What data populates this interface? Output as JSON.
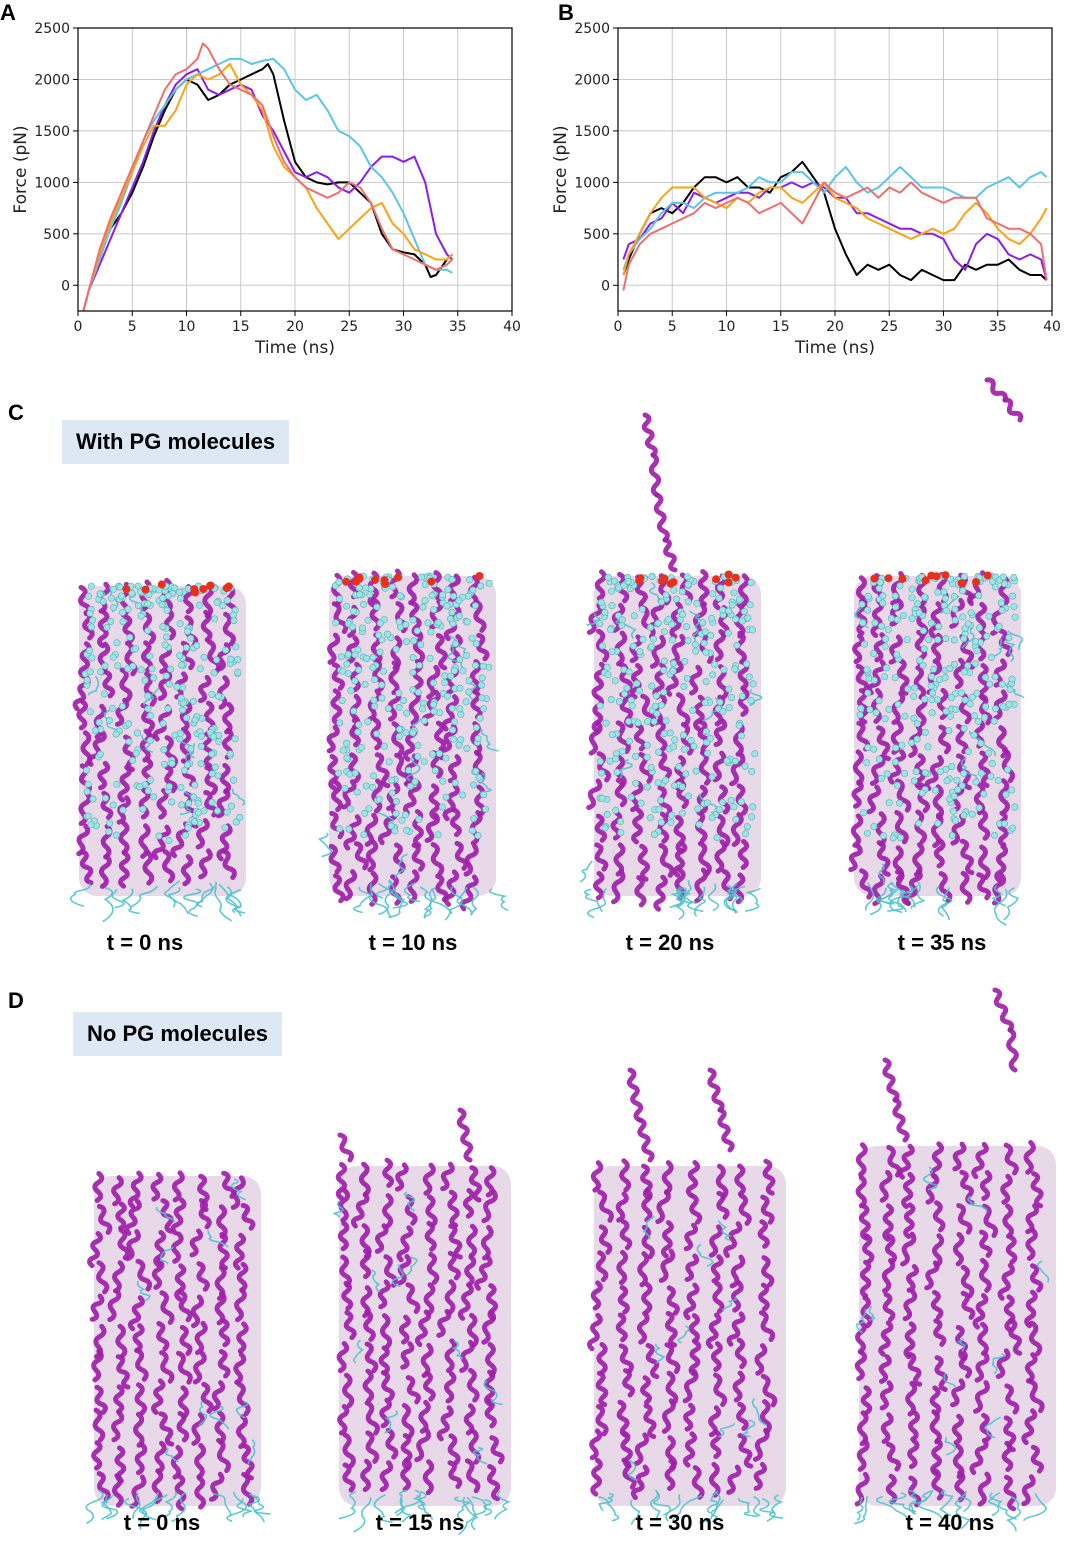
{
  "panels": {
    "a": "A",
    "b": "B",
    "c": "C",
    "d": "D"
  },
  "colors": {
    "black": "#000000",
    "purple": "#8a1ee8",
    "cyan": "#5bc4e8",
    "orange": "#f7a416",
    "salmon": "#ec7070",
    "helix": "#a020a8",
    "coil": "#4fc2cc",
    "pg_bead": "#9de4e6",
    "oxygen": "#e8301c",
    "label_bg": "#dce9f5"
  },
  "chart_data": [
    {
      "type": "line",
      "xlabel": "Time (ns)",
      "ylabel": "Force (pN)",
      "xlim": [
        0,
        40
      ],
      "ylim": [
        -250,
        2500
      ],
      "xticks": [
        0,
        5,
        10,
        15,
        20,
        25,
        30,
        35,
        40
      ],
      "yticks": [
        0,
        500,
        1000,
        1500,
        2000,
        2500
      ],
      "grid": true,
      "series": [
        {
          "color": "black",
          "x": [
            0.5,
            1,
            2,
            3,
            4,
            5,
            6,
            7,
            8,
            9,
            10,
            11,
            12,
            13,
            14,
            15,
            16,
            17,
            17.5,
            18,
            19,
            20,
            21,
            22,
            23,
            24,
            25,
            26,
            27,
            28,
            29,
            30,
            31,
            32,
            32.5,
            33,
            34,
            34.5
          ],
          "y": [
            -250,
            -50,
            300,
            550,
            700,
            900,
            1150,
            1450,
            1700,
            1900,
            2000,
            1950,
            1800,
            1850,
            1950,
            2000,
            2050,
            2100,
            2150,
            2050,
            1600,
            1200,
            1050,
            1000,
            980,
            1000,
            1000,
            900,
            800,
            500,
            350,
            320,
            300,
            200,
            80,
            100,
            250,
            300
          ]
        },
        {
          "color": "purple",
          "x": [
            0.5,
            1,
            2,
            3,
            4,
            5,
            6,
            7,
            8,
            9,
            10,
            11,
            12,
            13,
            14,
            15,
            16,
            17,
            18,
            19,
            20,
            21,
            22,
            23,
            24,
            25,
            26,
            27,
            28,
            29,
            30,
            31,
            32,
            33,
            34,
            34.5
          ],
          "y": [
            -250,
            -50,
            200,
            450,
            700,
            950,
            1200,
            1500,
            1750,
            1950,
            2050,
            2100,
            1900,
            1850,
            1900,
            1950,
            1900,
            1650,
            1500,
            1300,
            1100,
            1050,
            1100,
            1050,
            950,
            900,
            1000,
            1150,
            1250,
            1250,
            1200,
            1250,
            1000,
            500,
            300,
            250
          ]
        },
        {
          "color": "cyan",
          "x": [
            0.5,
            1,
            2,
            3,
            4,
            5,
            6,
            7,
            8,
            9,
            10,
            11,
            12,
            13,
            14,
            15,
            16,
            17,
            18,
            19,
            20,
            21,
            22,
            23,
            24,
            25,
            26,
            27,
            28,
            29,
            30,
            31,
            32,
            33,
            34,
            34.5
          ],
          "y": [
            -250,
            -50,
            250,
            550,
            800,
            1100,
            1400,
            1600,
            1750,
            1900,
            2000,
            2050,
            2100,
            2150,
            2200,
            2200,
            2150,
            2180,
            2200,
            2100,
            1900,
            1800,
            1850,
            1700,
            1500,
            1450,
            1350,
            1150,
            1050,
            900,
            700,
            450,
            200,
            150,
            150,
            120
          ]
        },
        {
          "color": "orange",
          "x": [
            0.5,
            1,
            2,
            3,
            4,
            5,
            6,
            7,
            8,
            9,
            10,
            11,
            12,
            13,
            14,
            15,
            16,
            17,
            18,
            19,
            20,
            21,
            22,
            23,
            24,
            25,
            26,
            27,
            28,
            29,
            30,
            31,
            32,
            33,
            34,
            34.5
          ],
          "y": [
            -250,
            -50,
            300,
            600,
            850,
            1100,
            1350,
            1550,
            1550,
            1700,
            1950,
            2050,
            2000,
            2050,
            2150,
            1950,
            1850,
            1700,
            1350,
            1150,
            1050,
            950,
            750,
            600,
            450,
            550,
            650,
            750,
            800,
            600,
            500,
            350,
            300,
            250,
            250,
            300
          ]
        },
        {
          "color": "salmon",
          "x": [
            0.5,
            1,
            2,
            3,
            4,
            5,
            6,
            7,
            8,
            9,
            10,
            11,
            11.5,
            12,
            13,
            14,
            15,
            16,
            17,
            18,
            19,
            20,
            21,
            22,
            23,
            24,
            25,
            26,
            27,
            28,
            29,
            30,
            31,
            32,
            33,
            34,
            34.5
          ],
          "y": [
            -250,
            -50,
            350,
            650,
            900,
            1150,
            1400,
            1650,
            1900,
            2050,
            2100,
            2200,
            2350,
            2300,
            2100,
            1950,
            1900,
            1850,
            1750,
            1450,
            1200,
            1050,
            950,
            900,
            850,
            900,
            1000,
            950,
            800,
            550,
            350,
            300,
            250,
            200,
            150,
            200,
            250
          ]
        }
      ]
    },
    {
      "type": "line",
      "xlabel": "Time (ns)",
      "ylabel": "Force (pN)",
      "xlim": [
        0,
        40
      ],
      "ylim": [
        -250,
        2500
      ],
      "xticks": [
        0,
        5,
        10,
        15,
        20,
        25,
        30,
        35,
        40
      ],
      "yticks": [
        0,
        500,
        1000,
        1500,
        2000,
        2500
      ],
      "grid": true,
      "series": [
        {
          "color": "black",
          "x": [
            0.5,
            1,
            2,
            3,
            4,
            5,
            6,
            7,
            8,
            9,
            10,
            11,
            12,
            13,
            14,
            15,
            16,
            17,
            18,
            19,
            20,
            21,
            22,
            23,
            24,
            25,
            26,
            27,
            28,
            29,
            30,
            31,
            32,
            33,
            34,
            35,
            36,
            37,
            38,
            39,
            39.5
          ],
          "y": [
            100,
            250,
            500,
            700,
            750,
            700,
            800,
            950,
            1050,
            1050,
            1000,
            1050,
            950,
            950,
            900,
            1050,
            1100,
            1200,
            1050,
            900,
            550,
            300,
            100,
            200,
            150,
            200,
            100,
            50,
            150,
            100,
            50,
            50,
            200,
            150,
            200,
            200,
            250,
            150,
            100,
            100,
            50
          ]
        },
        {
          "color": "purple",
          "x": [
            0.5,
            1,
            2,
            3,
            4,
            5,
            6,
            7,
            8,
            9,
            10,
            11,
            12,
            13,
            14,
            15,
            16,
            17,
            18,
            19,
            20,
            21,
            22,
            23,
            24,
            25,
            26,
            27,
            28,
            29,
            30,
            31,
            32,
            33,
            34,
            35,
            36,
            37,
            38,
            39,
            39.5
          ],
          "y": [
            250,
            400,
            450,
            600,
            650,
            800,
            700,
            900,
            850,
            800,
            850,
            900,
            900,
            850,
            950,
            950,
            1000,
            950,
            1000,
            950,
            850,
            850,
            700,
            700,
            650,
            600,
            550,
            550,
            500,
            500,
            450,
            250,
            150,
            400,
            500,
            450,
            300,
            250,
            300,
            250,
            50
          ]
        },
        {
          "color": "cyan",
          "x": [
            0.5,
            1,
            2,
            3,
            4,
            5,
            6,
            7,
            8,
            9,
            10,
            11,
            12,
            13,
            14,
            15,
            16,
            17,
            18,
            19,
            20,
            21,
            22,
            23,
            24,
            25,
            26,
            27,
            28,
            29,
            30,
            31,
            32,
            33,
            34,
            35,
            36,
            37,
            38,
            39,
            39.5
          ],
          "y": [
            150,
            300,
            450,
            550,
            700,
            800,
            800,
            750,
            850,
            900,
            900,
            900,
            950,
            1050,
            1000,
            1000,
            1100,
            1100,
            1000,
            900,
            1050,
            1150,
            1000,
            900,
            950,
            1050,
            1150,
            1050,
            950,
            950,
            950,
            900,
            850,
            850,
            950,
            1000,
            1050,
            950,
            1050,
            1100,
            1050
          ]
        },
        {
          "color": "orange",
          "x": [
            0.5,
            1,
            2,
            3,
            4,
            5,
            6,
            7,
            8,
            9,
            10,
            11,
            12,
            13,
            14,
            15,
            16,
            17,
            18,
            19,
            20,
            21,
            22,
            23,
            24,
            25,
            26,
            27,
            28,
            29,
            30,
            31,
            32,
            33,
            34,
            35,
            36,
            37,
            38,
            39,
            39.5
          ],
          "y": [
            100,
            300,
            500,
            700,
            850,
            950,
            950,
            950,
            850,
            800,
            750,
            850,
            800,
            900,
            950,
            950,
            850,
            800,
            900,
            1000,
            850,
            800,
            750,
            650,
            600,
            550,
            500,
            450,
            500,
            550,
            500,
            550,
            700,
            800,
            700,
            550,
            450,
            400,
            500,
            650,
            750
          ]
        },
        {
          "color": "salmon",
          "x": [
            0.5,
            1,
            2,
            3,
            4,
            5,
            6,
            7,
            8,
            9,
            10,
            11,
            12,
            13,
            14,
            15,
            16,
            17,
            18,
            19,
            20,
            21,
            22,
            23,
            24,
            25,
            26,
            27,
            28,
            29,
            30,
            31,
            32,
            33,
            34,
            35,
            36,
            37,
            38,
            39,
            39.5
          ],
          "y": [
            -50,
            200,
            400,
            500,
            550,
            600,
            650,
            700,
            800,
            750,
            800,
            850,
            800,
            700,
            750,
            800,
            700,
            600,
            800,
            1000,
            900,
            850,
            900,
            950,
            850,
            950,
            900,
            1000,
            900,
            850,
            800,
            850,
            850,
            850,
            650,
            600,
            550,
            550,
            500,
            400,
            50
          ]
        }
      ]
    }
  ],
  "panel_c": {
    "label": "With PG molecules",
    "times": [
      "t = 0 ns",
      "t = 10 ns",
      "t = 20 ns",
      "t = 35 ns"
    ]
  },
  "panel_d": {
    "label": "No PG molecules",
    "times": [
      "t = 0 ns",
      "t = 15 ns",
      "t = 30 ns",
      "t = 40 ns"
    ]
  }
}
